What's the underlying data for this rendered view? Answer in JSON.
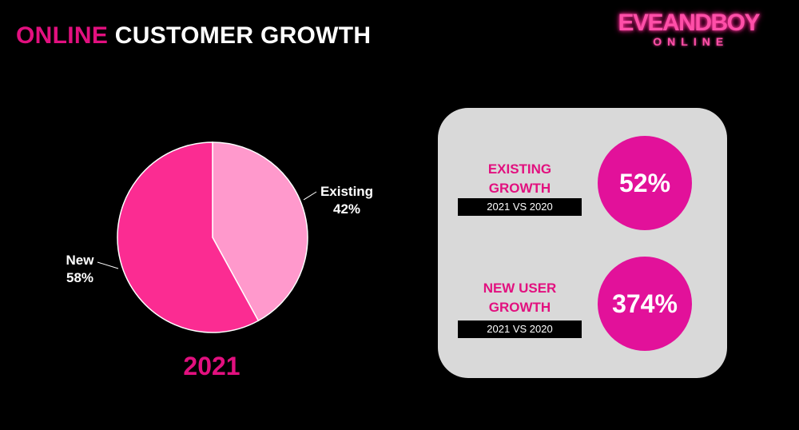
{
  "title": {
    "accent": "ONLINE",
    "rest": "CUSTOMER GROWTH"
  },
  "logo": {
    "main": "EVEANDBOY",
    "sub": "ONLINE"
  },
  "chart_data": {
    "type": "pie",
    "title": "2021",
    "slices": [
      {
        "label": "Existing",
        "value": 42,
        "display": "42%",
        "color": "#ff99cc"
      },
      {
        "label": "New",
        "value": 58,
        "display": "58%",
        "color": "#fb2c92"
      }
    ],
    "start": "12 o'clock",
    "direction": "clockwise"
  },
  "stats": [
    {
      "heading_line1": "EXISTING",
      "heading_line2": "GROWTH",
      "period": "2021 VS 2020",
      "value": "52%"
    },
    {
      "heading_line1": "NEW USER",
      "heading_line2": "GROWTH",
      "period": "2021 VS 2020",
      "value": "374%"
    }
  ],
  "colors": {
    "accent": "#e2107f",
    "circle": "#e2119a",
    "panel": "#d9d9d9",
    "background": "#000000"
  }
}
